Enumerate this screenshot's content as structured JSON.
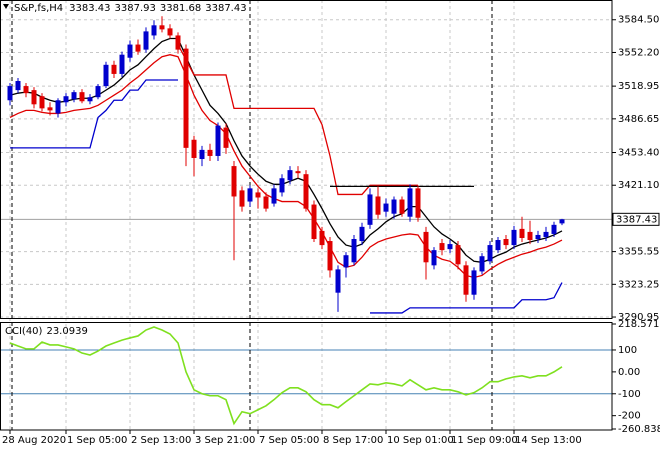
{
  "chart_data": [
    {
      "type": "candlestick",
      "title": "S&P,fs,H4",
      "categories": [
        "28 Aug 2020",
        null,
        null,
        null,
        null,
        null,
        null,
        "1 Sep 05:00",
        null,
        null,
        null,
        null,
        null,
        null,
        null,
        "2 Sep 13:00",
        null,
        null,
        null,
        null,
        null,
        null,
        null,
        "3 Sep 21:00",
        null,
        null,
        null,
        null,
        null,
        null,
        null,
        "7 Sep 05:00",
        null,
        null,
        null,
        null,
        null,
        null,
        null,
        "8 Sep 17:00",
        null,
        null,
        null,
        null,
        null,
        null,
        null,
        "10 Sep 01:00",
        null,
        null,
        null,
        null,
        null,
        null,
        null,
        "11 Sep 09:00",
        null,
        null,
        null,
        null,
        null,
        null,
        null,
        "14 Sep 13:00",
        null,
        null,
        null,
        null,
        null,
        null
      ],
      "open": [
        3505,
        3515,
        3519,
        3515,
        3509,
        3498,
        3492,
        3503,
        3506,
        3513,
        3504,
        3508,
        3519,
        3540,
        3531,
        3547,
        3560,
        3555,
        3569,
        3579,
        3576,
        3569,
        3556,
        3466,
        3447,
        3456,
        3450,
        3478,
        3440,
        3416,
        3405,
        3414,
        3410,
        3403,
        3414,
        3426,
        3435,
        3432,
        3402,
        3376,
        3366,
        3315,
        3340,
        3345,
        3366,
        3382,
        3410,
        3395,
        3393,
        3407,
        3390,
        3418,
        3375,
        3342,
        3364,
        3358,
        3362,
        3342,
        3313,
        3336,
        3346,
        3357,
        3368,
        3362,
        3378,
        3375,
        3368,
        3370,
        3373,
        3383.43
      ],
      "high": [
        3522,
        3527,
        3522,
        3518,
        3512,
        3503,
        3507,
        3512,
        3515,
        3516,
        3511,
        3521,
        3543,
        3544,
        3553,
        3564,
        3565,
        3577,
        3584,
        3588,
        3580,
        3572,
        3560,
        3470,
        3460,
        3462,
        3483,
        3482,
        3445,
        3420,
        3421,
        3418,
        3414,
        3422,
        3432,
        3440,
        3440,
        3436,
        3406,
        3380,
        3370,
        3342,
        3355,
        3372,
        3384,
        3418,
        3420,
        3408,
        3410,
        3410,
        3422,
        3421,
        3380,
        3360,
        3368,
        3367,
        3366,
        3346,
        3340,
        3354,
        3366,
        3370,
        3372,
        3381,
        3390,
        3386,
        3376,
        3380,
        3385,
        3387.93
      ],
      "low": [
        3500,
        3512,
        3508,
        3497,
        3494,
        3490,
        3488,
        3499,
        3503,
        3502,
        3501,
        3506,
        3517,
        3527,
        3528,
        3543,
        3550,
        3552,
        3565,
        3572,
        3566,
        3551,
        3440,
        3430,
        3440,
        3445,
        3445,
        3452,
        3347,
        3395,
        3400,
        3398,
        3395,
        3400,
        3410,
        3422,
        3428,
        3395,
        3365,
        3358,
        3330,
        3296,
        3330,
        3342,
        3362,
        3378,
        3388,
        3390,
        3388,
        3390,
        3385,
        3385,
        3328,
        3338,
        3352,
        3354,
        3338,
        3306,
        3308,
        3333,
        3343,
        3354,
        3358,
        3358,
        3365,
        3363,
        3364,
        3366,
        3370,
        3381.68
      ],
      "close": [
        3519,
        3524,
        3512,
        3501,
        3497,
        3495,
        3505,
        3509,
        3513,
        3504,
        3508,
        3519,
        3540,
        3531,
        3550,
        3560,
        3553,
        3573,
        3579,
        3575,
        3569,
        3555,
        3458,
        3448,
        3456,
        3450,
        3480,
        3458,
        3410,
        3400,
        3418,
        3409,
        3398,
        3418,
        3428,
        3436,
        3433,
        3398,
        3368,
        3362,
        3337,
        3338,
        3352,
        3368,
        3380,
        3412,
        3392,
        3403,
        3407,
        3393,
        3418,
        3389,
        3345,
        3357,
        3357,
        3363,
        3343,
        3313,
        3337,
        3351,
        3362,
        3367,
        3362,
        3377,
        3369,
        3367,
        3372,
        3375,
        3382,
        3387.43
      ],
      "up_color": "#0000cd",
      "down_color": "#e00000",
      "series": [
        {
          "color": "#000000",
          "values": [
            3510,
            3512,
            3513,
            3512,
            3508,
            3505,
            3503,
            3504,
            3506,
            3507,
            3507,
            3510,
            3515,
            3520,
            3527,
            3535,
            3540,
            3548,
            3556,
            3563,
            3566,
            3566,
            3548,
            3530,
            3515,
            3500,
            3492,
            3482,
            3465,
            3450,
            3440,
            3432,
            3425,
            3422,
            3422,
            3425,
            3428,
            3425,
            3412,
            3398,
            3383,
            3370,
            3362,
            3360,
            3363,
            3372,
            3378,
            3385,
            3390,
            3393,
            3400,
            3400,
            3390,
            3380,
            3373,
            3368,
            3362,
            3352,
            3346,
            3345,
            3348,
            3352,
            3355,
            3360,
            3363,
            3365,
            3367,
            3369,
            3372,
            3376
          ]
        },
        {
          "color": "#e00000",
          "values": [
            3488,
            3492,
            3495,
            3495,
            3493,
            3492,
            3492,
            3493,
            3495,
            3496,
            3497,
            3500,
            3505,
            3510,
            3515,
            3522,
            3528,
            3535,
            3542,
            3548,
            3550,
            3548,
            3530,
            3510,
            3495,
            3485,
            3480,
            3472,
            3455,
            3440,
            3430,
            3420,
            3412,
            3408,
            3405,
            3405,
            3405,
            3400,
            3388,
            3375,
            3360,
            3345,
            3340,
            3342,
            3350,
            3360,
            3365,
            3368,
            3370,
            3372,
            3373,
            3372,
            3360,
            3352,
            3348,
            3346,
            3340,
            3332,
            3330,
            3332,
            3338,
            3343,
            3347,
            3350,
            3353,
            3355,
            3358,
            3360,
            3363,
            3367
          ]
        },
        {
          "color": "#0000cd",
          "values": [
            3458,
            3458,
            3458,
            3458,
            3458,
            3458,
            3458,
            3458,
            3458,
            3458,
            3458,
            3488,
            3495,
            3505,
            3505,
            3515,
            3515,
            3525,
            3525,
            3525,
            3525,
            3525,
            null,
            null,
            null,
            null,
            null,
            null,
            null,
            null,
            null,
            null,
            null,
            null,
            null,
            null,
            null,
            null,
            null,
            null,
            null,
            null,
            null,
            null,
            null,
            3295,
            3295,
            3295,
            3295,
            3295,
            3300,
            3300,
            3300,
            3300,
            3300,
            3300,
            3300,
            3300,
            3300,
            3300,
            3300,
            3300,
            3300,
            3300,
            3308,
            3308,
            3308,
            3308,
            3310,
            3325
          ]
        },
        {
          "color": "#e00000",
          "values": [
            null,
            null,
            null,
            null,
            null,
            null,
            null,
            null,
            null,
            null,
            null,
            null,
            null,
            null,
            null,
            null,
            null,
            null,
            null,
            null,
            null,
            3560,
            3545,
            3530,
            3530,
            3530,
            3530,
            3530,
            3497,
            3497,
            3497,
            3497,
            3497,
            3497,
            3497,
            3497,
            3497,
            3497,
            3497,
            3481,
            3450,
            3412,
            3412,
            3412,
            3412,
            3421,
            3421,
            3421,
            3421,
            3421,
            3421,
            3421,
            null,
            null,
            null,
            null,
            null,
            null,
            null,
            null,
            null,
            null,
            null,
            null,
            null,
            null,
            null,
            null,
            null,
            null
          ]
        },
        {
          "color": "#000000",
          "values": [
            null,
            null,
            null,
            null,
            null,
            null,
            null,
            null,
            null,
            null,
            null,
            null,
            null,
            null,
            null,
            null,
            null,
            null,
            null,
            null,
            null,
            null,
            null,
            null,
            null,
            null,
            null,
            null,
            null,
            null,
            null,
            null,
            null,
            null,
            null,
            null,
            null,
            null,
            null,
            null,
            3420,
            3420,
            3420,
            3420,
            3420,
            3420,
            3420,
            3420,
            3420,
            3420,
            3420,
            3420,
            3420,
            3420,
            3420,
            3420,
            3420,
            3420,
            3420,
            null,
            null,
            null,
            null,
            null,
            null,
            null,
            null,
            null,
            null,
            null
          ]
        }
      ],
      "ylim": [
        3290,
        3604
      ],
      "yticks": [
        {
          "value": 3584.5,
          "label": "3584.50"
        },
        {
          "value": 3552.2,
          "label": "3552.20"
        },
        3518.95,
        3486.65,
        {
          "value": 3453.4,
          "label": "3453.40"
        },
        {
          "value": 3421.1,
          "label": "3421.10"
        },
        3355.55,
        3323.25,
        3290.95
      ],
      "grid": true
    },
    {
      "type": "line",
      "title": "CCI(40)",
      "series": [
        {
          "color": "#7fe01f",
          "values": [
            132,
            118,
            105,
            105,
            136,
            123,
            123,
            114,
            105,
            86,
            77,
            95,
            118,
            132,
            145,
            155,
            164,
            191,
            205,
            191,
            173,
            132,
            0,
            -82,
            -100,
            -109,
            -109,
            -127,
            -236,
            -182,
            -191,
            -173,
            -155,
            -127,
            -95,
            -73,
            -73,
            -91,
            -127,
            -150,
            -150,
            -164,
            -136,
            -109,
            -82,
            -55,
            -59,
            -50,
            -55,
            -64,
            -36,
            -59,
            -82,
            -73,
            -82,
            -82,
            -91,
            -105,
            -95,
            -73,
            -45,
            -45,
            -32,
            -23,
            -18,
            -27,
            -18,
            -18,
            0,
            23.0939
          ]
        }
      ],
      "ylim": [
        -260.8386,
        218.5717
      ],
      "yticks": [
        218.5717,
        100,
        {
          "value": 0,
          "label": "0.00"
        },
        -100,
        -200,
        -260.8386
      ],
      "levels": [
        100,
        -100
      ],
      "level_color": "#4682b4"
    }
  ]
}
